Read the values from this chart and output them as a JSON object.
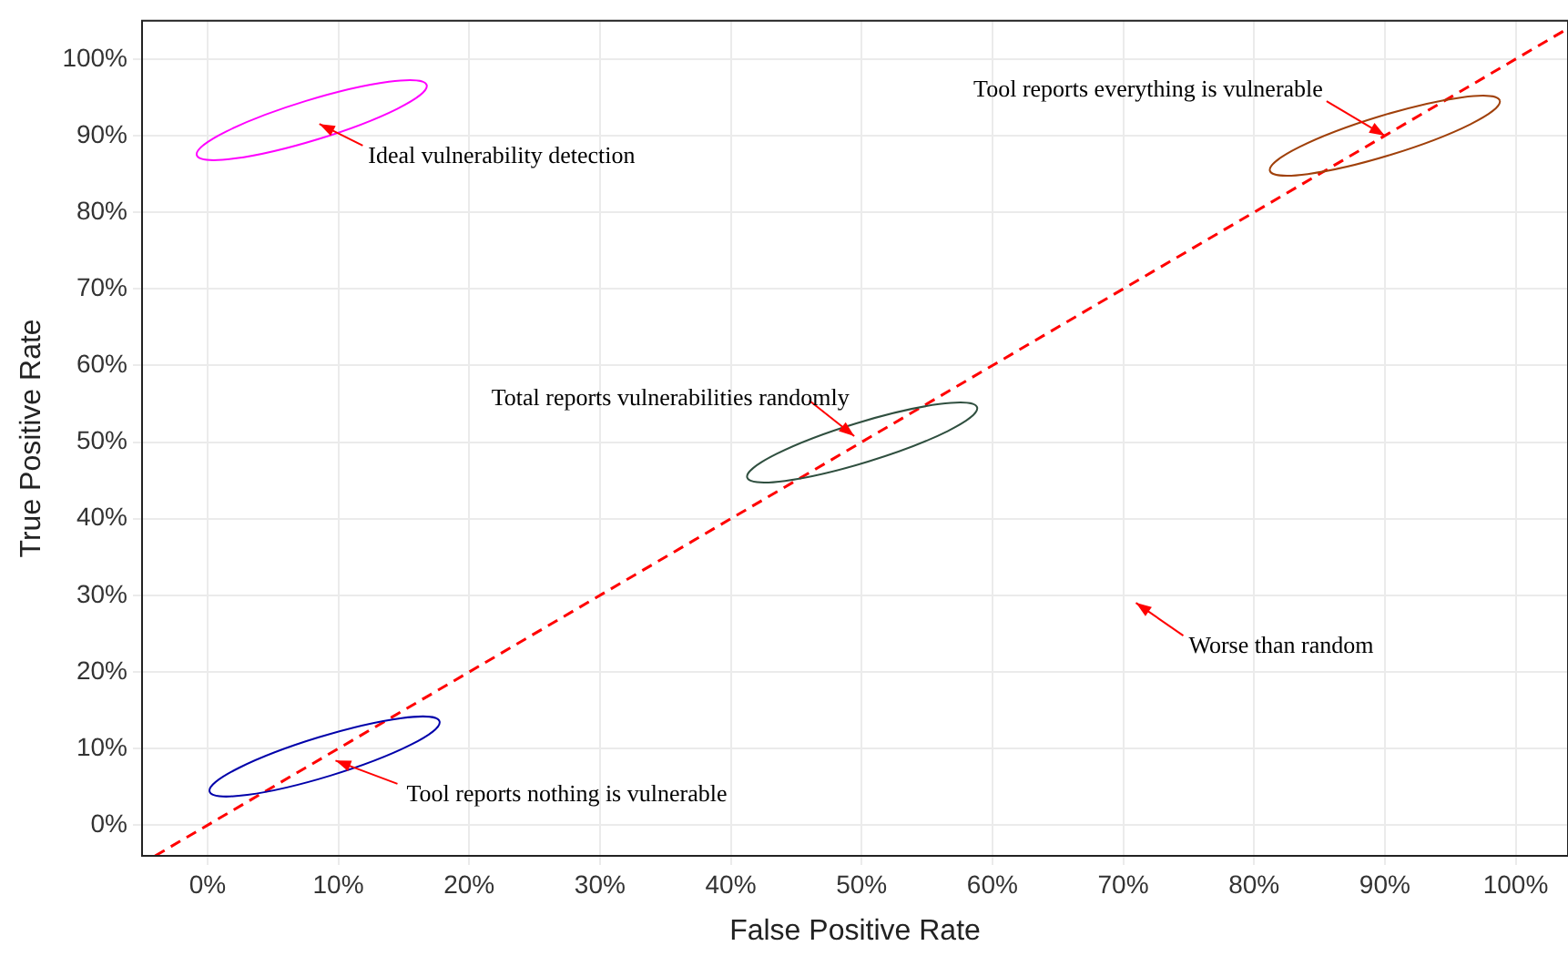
{
  "chart_data": {
    "type": "line",
    "xlabel": "False Positive Rate",
    "ylabel": "True Positive Rate",
    "xlim": [
      -5,
      104
    ],
    "ylim": [
      -4,
      105
    ],
    "xticks": [
      {
        "value": 0,
        "label": "0%"
      },
      {
        "value": 10,
        "label": "10%"
      },
      {
        "value": 20,
        "label": "20%"
      },
      {
        "value": 30,
        "label": "30%"
      },
      {
        "value": 40,
        "label": "40%"
      },
      {
        "value": 50,
        "label": "50%"
      },
      {
        "value": 60,
        "label": "60%"
      },
      {
        "value": 70,
        "label": "70%"
      },
      {
        "value": 80,
        "label": "80%"
      },
      {
        "value": 90,
        "label": "90%"
      },
      {
        "value": 100,
        "label": "100%"
      }
    ],
    "yticks": [
      {
        "value": 0,
        "label": "0%"
      },
      {
        "value": 10,
        "label": "10%"
      },
      {
        "value": 20,
        "label": "20%"
      },
      {
        "value": 30,
        "label": "30%"
      },
      {
        "value": 40,
        "label": "40%"
      },
      {
        "value": 50,
        "label": "50%"
      },
      {
        "value": 60,
        "label": "60%"
      },
      {
        "value": 70,
        "label": "70%"
      },
      {
        "value": 80,
        "label": "80%"
      },
      {
        "value": 90,
        "label": "90%"
      },
      {
        "value": 100,
        "label": "100%"
      }
    ],
    "series": [
      {
        "color": "#ff0000",
        "x": [
          -4,
          104
        ],
        "values": [
          -4,
          104
        ]
      }
    ],
    "line_style": "dashed",
    "marker": "none",
    "grid": true,
    "legend": false,
    "annotations": [
      "Ideal vulnerability detection",
      "Total reports vulnerabilities randomly",
      "Tool reports nothing is vulnerable",
      {
        "text": "Tool reports everything is vulnerable",
        "x": 90,
        "y": 90
      },
      "Worse than random"
    ]
  }
}
